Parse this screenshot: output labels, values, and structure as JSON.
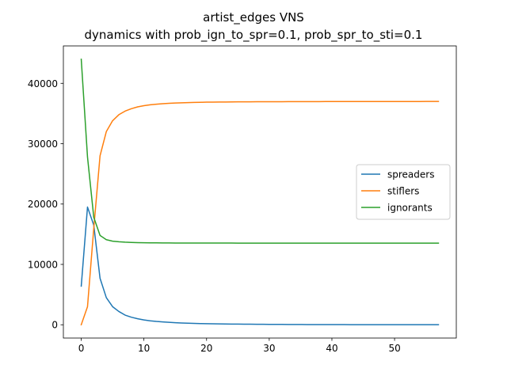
{
  "chart_data": {
    "type": "line",
    "title": "artist_edges VNS",
    "subtitle": "dynamics with prob_ign_to_spr=0.1, prob_spr_to_sti=0.1",
    "xlabel": "",
    "ylabel": "",
    "xlim": [
      -2.85,
      59.85
    ],
    "ylim": [
      -2200,
      46200
    ],
    "xticks": [
      0,
      10,
      20,
      30,
      40,
      50
    ],
    "yticks": [
      0,
      10000,
      20000,
      30000,
      40000
    ],
    "grid": false,
    "legend_position": "center-right",
    "x": [
      0,
      1,
      2,
      3,
      4,
      5,
      6,
      7,
      8,
      9,
      10,
      11,
      12,
      13,
      14,
      15,
      16,
      17,
      18,
      19,
      20,
      21,
      22,
      23,
      24,
      25,
      26,
      27,
      28,
      29,
      30,
      31,
      32,
      33,
      34,
      35,
      36,
      37,
      38,
      39,
      40,
      41,
      42,
      43,
      44,
      45,
      46,
      47,
      48,
      49,
      50,
      51,
      52,
      53,
      54,
      55,
      56,
      57
    ],
    "series": [
      {
        "name": "spreaders",
        "color": "#1f77b4",
        "values": [
          6400,
          19500,
          16500,
          7700,
          4500,
          3000,
          2200,
          1600,
          1250,
          1000,
          800,
          660,
          550,
          470,
          400,
          340,
          300,
          260,
          230,
          200,
          180,
          160,
          145,
          130,
          118,
          107,
          97,
          88,
          80,
          73,
          66,
          60,
          55,
          50,
          46,
          42,
          38,
          35,
          32,
          29,
          27,
          25,
          23,
          21,
          19,
          18,
          16,
          15,
          14,
          13,
          12,
          11,
          10,
          9,
          9,
          8,
          8,
          7
        ]
      },
      {
        "name": "stiflers",
        "color": "#ff7f0e",
        "values": [
          0,
          3000,
          16000,
          28000,
          32000,
          33800,
          34800,
          35400,
          35800,
          36100,
          36300,
          36450,
          36550,
          36630,
          36690,
          36740,
          36780,
          36810,
          36840,
          36860,
          36880,
          36890,
          36900,
          36910,
          36920,
          36930,
          36935,
          36940,
          36945,
          36950,
          36955,
          36958,
          36961,
          36964,
          36967,
          36970,
          36972,
          36974,
          36976,
          36978,
          36980,
          36981,
          36982,
          36983,
          36984,
          36985,
          36986,
          36987,
          36988,
          36989,
          36990,
          36991,
          36992,
          36993,
          36994,
          36995,
          36996,
          36997
        ]
      },
      {
        "name": "ignorants",
        "color": "#2ca02c",
        "values": [
          44000,
          27800,
          17800,
          14800,
          14100,
          13850,
          13750,
          13680,
          13640,
          13610,
          13590,
          13575,
          13565,
          13558,
          13552,
          13548,
          13545,
          13542,
          13540,
          13538,
          13536,
          13535,
          13534,
          13533,
          13532,
          13531,
          13530,
          13530,
          13529,
          13529,
          13528,
          13528,
          13527,
          13527,
          13527,
          13526,
          13526,
          13526,
          13525,
          13525,
          13525,
          13525,
          13524,
          13524,
          13524,
          13524,
          13524,
          13523,
          13523,
          13523,
          13523,
          13523,
          13523,
          13522,
          13522,
          13522,
          13522,
          13522
        ]
      }
    ]
  }
}
